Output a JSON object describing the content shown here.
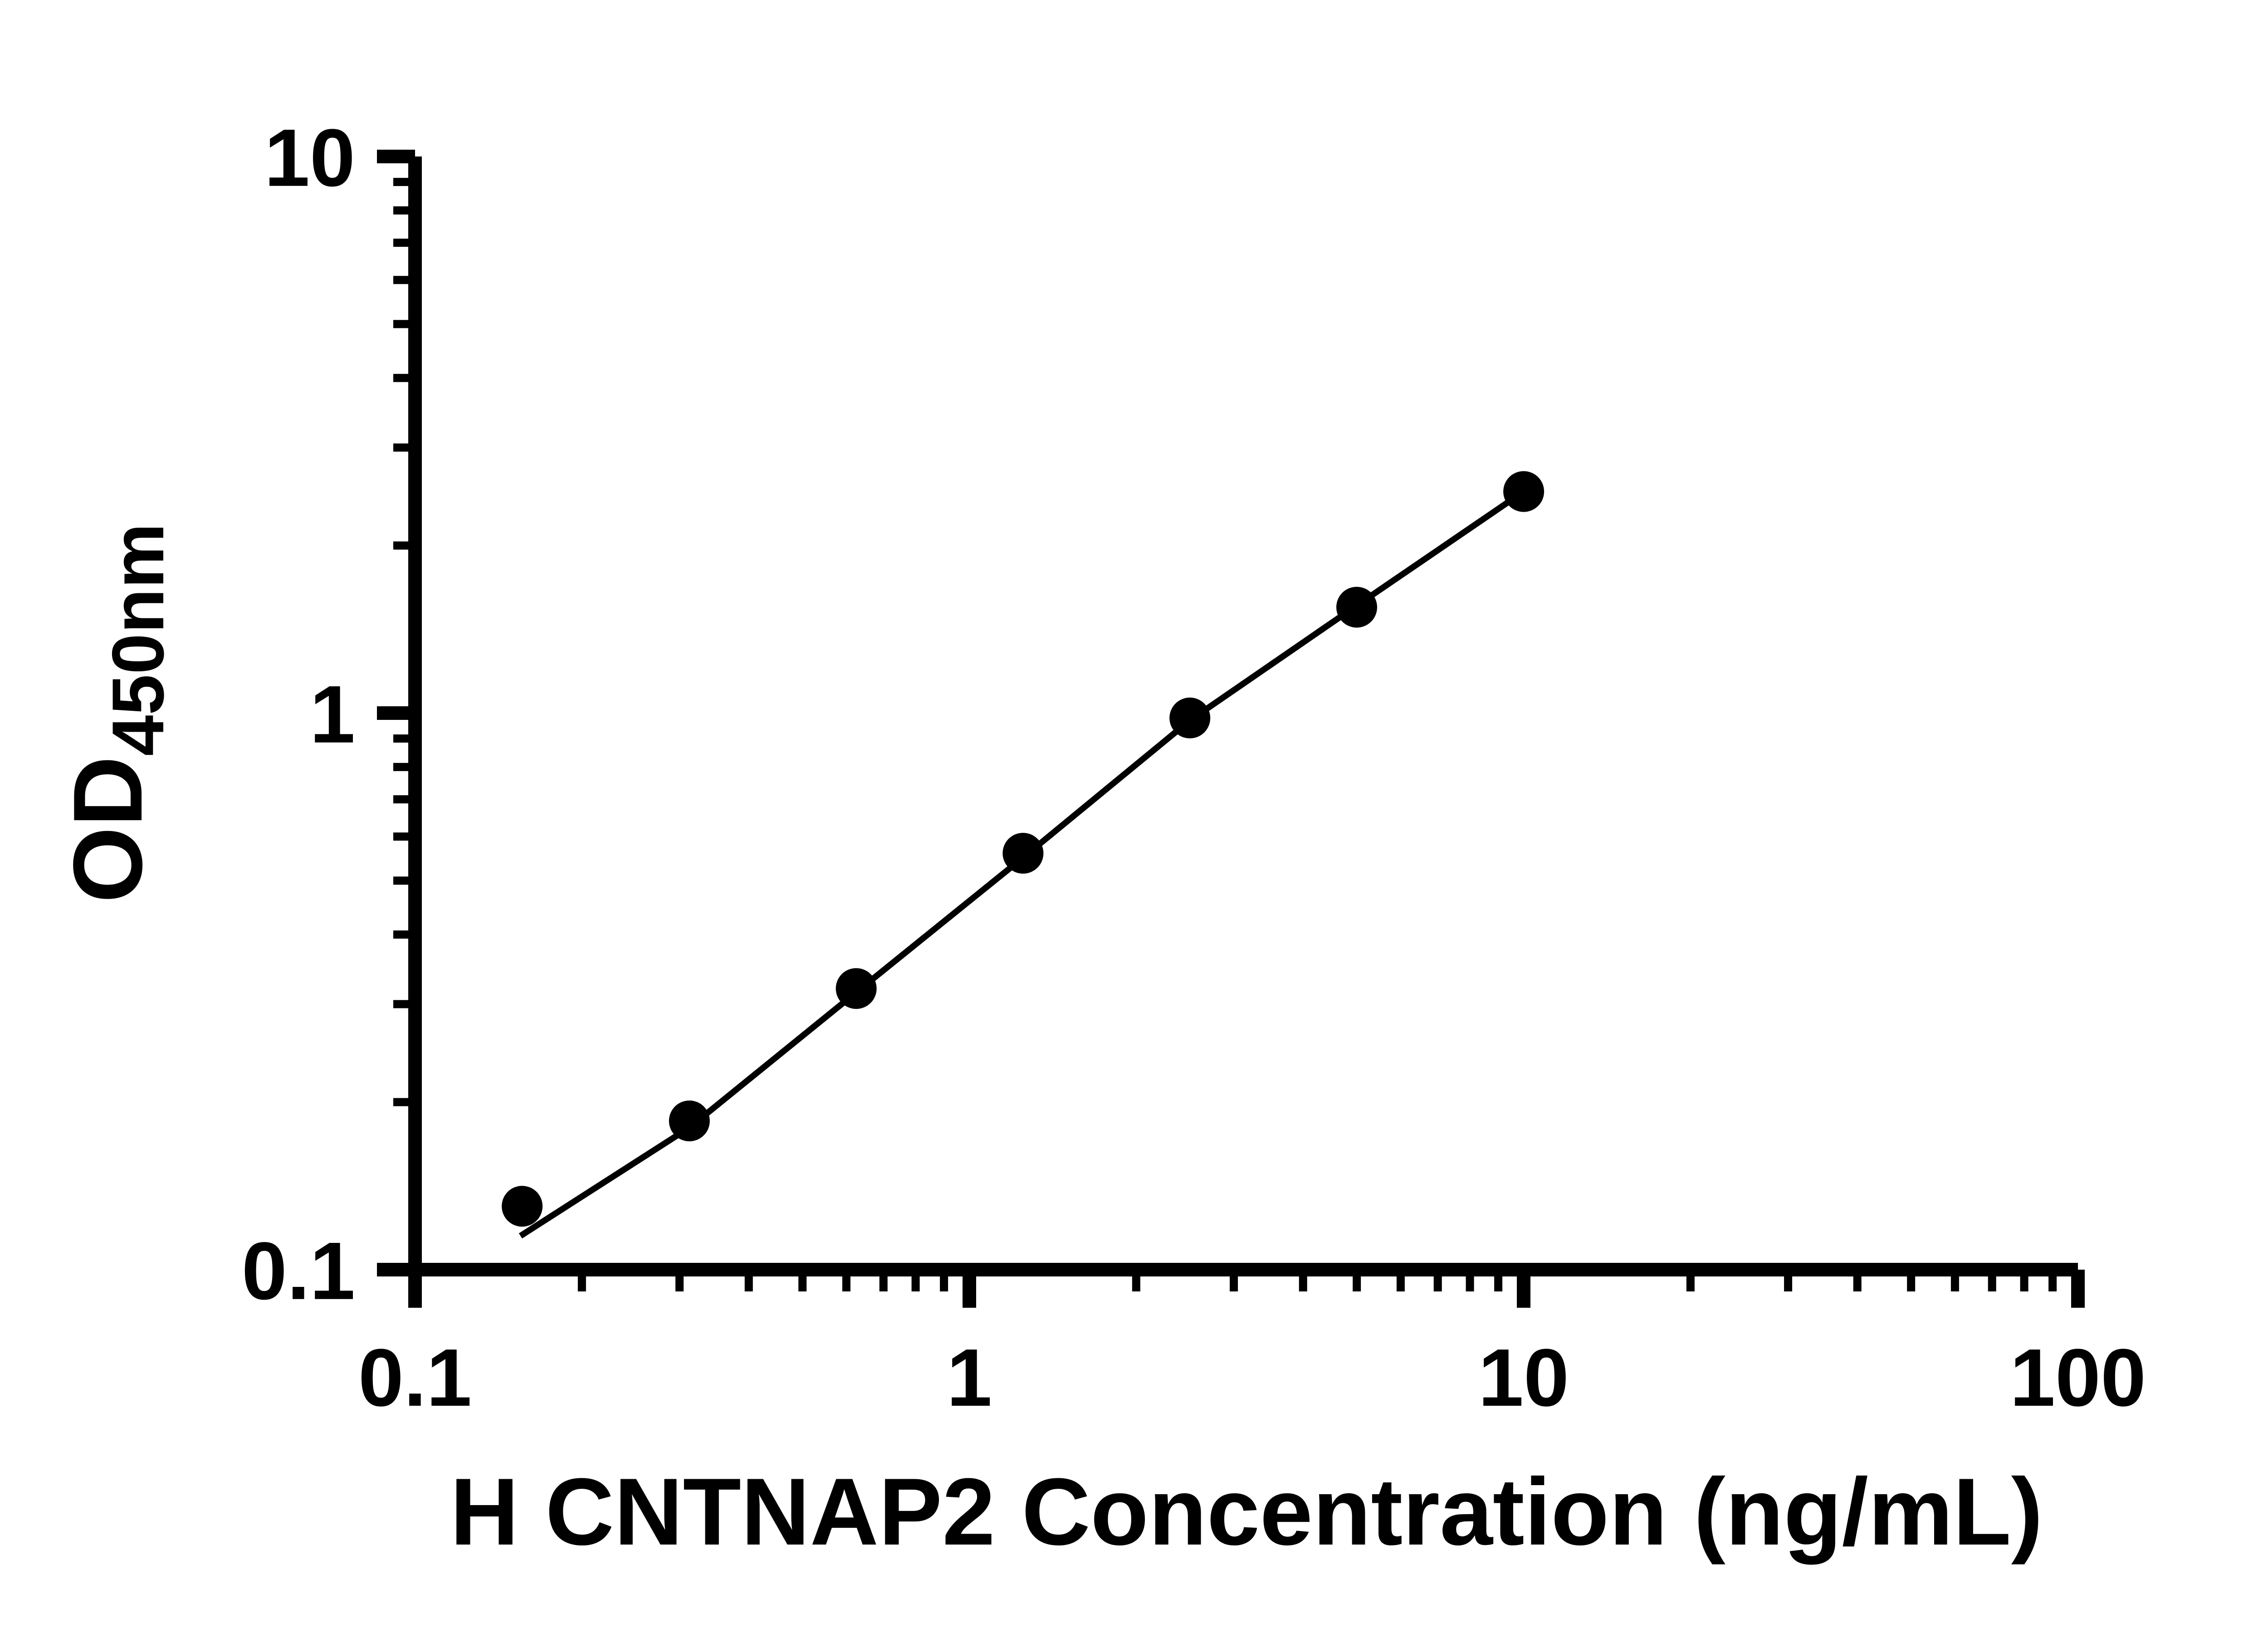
{
  "chart_data": {
    "type": "scatter",
    "title": "",
    "xlabel": "H CNTNAP2 Concentration (ng/mL)",
    "ylabel_main": "OD",
    "ylabel_sub": "450nm",
    "xscale": "log",
    "yscale": "log",
    "xlim": [
      0.1,
      100
    ],
    "ylim": [
      0.1,
      10
    ],
    "x_tick_values": [
      0.1,
      1,
      10,
      100
    ],
    "x_tick_labels": [
      "0.1",
      "1",
      "10",
      "100"
    ],
    "y_tick_values": [
      0.1,
      1,
      10
    ],
    "y_tick_labels": [
      "0.1",
      "1",
      "10"
    ],
    "grid": "off",
    "legend": "none",
    "points": {
      "x": [
        0.156,
        0.3125,
        0.625,
        1.25,
        2.5,
        5,
        10
      ],
      "y": [
        0.13,
        0.185,
        0.32,
        0.56,
        0.98,
        1.55,
        2.5
      ]
    },
    "fit_line": {
      "x": [
        0.155,
        0.3125,
        0.625,
        1.25,
        2.5,
        5,
        10
      ],
      "y": [
        0.115,
        0.18,
        0.315,
        0.55,
        0.97,
        1.56,
        2.5
      ]
    },
    "marker_color": "#000000",
    "line_color": "#000000",
    "axis_color": "#000000",
    "background_color": "#ffffff"
  }
}
